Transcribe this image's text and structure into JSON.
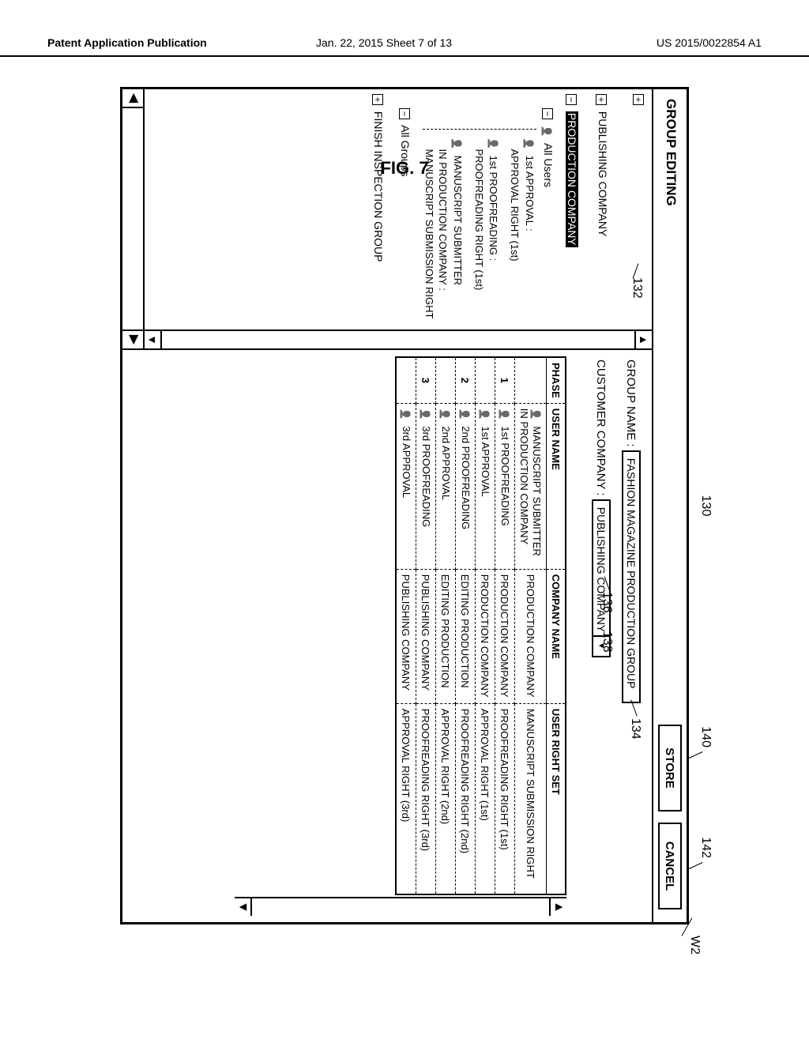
{
  "header": {
    "left": "Patent Application Publication",
    "mid": "Jan. 22, 2015  Sheet 7 of 13",
    "right": "US 2015/0022854 A1"
  },
  "figure_label": "FIG. 7",
  "callouts": {
    "c130": "130",
    "c132": "132",
    "c134": "134",
    "c136": "136",
    "c138": "138",
    "c140": "140",
    "c142": "142",
    "cW2": "W2"
  },
  "window": {
    "title": "GROUP EDITING",
    "store_btn": "STORE",
    "cancel_btn": "CANCEL"
  },
  "right": {
    "group_name_label": "GROUP NAME :",
    "group_name_value": "FASHION MAGAZINE PRODUCTION GROUP",
    "customer_label": "CUSTOMER COMPANY :",
    "customer_value": "PUBLISHING COMPANY",
    "columns": {
      "phase": "PHASE",
      "user": "USER NAME",
      "company": "COMPANY NAME",
      "right": "USER RIGHT SET"
    },
    "rows": [
      {
        "phase": "",
        "user": "MANUSCRIPT SUBMITTER IN PRODUCTION COMPANY",
        "company": "PRODUCTION COMPANY",
        "right": "MANUSCRIPT SUBMISSION RIGHT"
      },
      {
        "phase": "1",
        "user": "1st PROOFREADING",
        "company": "PRODUCTION COMPANY",
        "right": "PROOFREADING RIGHT (1st)"
      },
      {
        "phase": "",
        "user": "1st APPROVAL",
        "company": "PRODUCTION COMPANY",
        "right": "APPROVAL RIGHT (1st)"
      },
      {
        "phase": "2",
        "user": "2nd PROOFREADING",
        "company": "EDITING PRODUCTION",
        "right": "PROOFREADING RIGHT (2nd)"
      },
      {
        "phase": "",
        "user": "2nd APPROVAL",
        "company": "EDITING PRODUCTION",
        "right": "APPROVAL RIGHT (2nd)"
      },
      {
        "phase": "3",
        "user": "3rd PROOFREADING",
        "company": "PUBLISHING COMPANY",
        "right": "PROOFREADING RIGHT (3rd)"
      },
      {
        "phase": "",
        "user": "3rd APPROVAL",
        "company": "PUBLISHING COMPANY",
        "right": "APPROVAL RIGHT (3rd)"
      }
    ]
  },
  "tree": {
    "root": "",
    "publishing": "PUBLISHING COMPANY",
    "production": "PRODUCTION COMPANY",
    "all_users": "All Users",
    "n1": "1st APPROVAL :",
    "n1b": "APPROVAL RIGHT (1st)",
    "n2": "1st PROOFREADING :",
    "n2b": "PROOFREADING RIGHT (1st)",
    "n3": "MANUSCRIPT SUBMITTER",
    "n3b": "IN PRODUCTION COMPANY :",
    "n3c": "MANUSCRIPT SUBMISSION RIGHT",
    "all_groups": "All Groups",
    "finish": "FINISH INSPECTION GROUP"
  }
}
